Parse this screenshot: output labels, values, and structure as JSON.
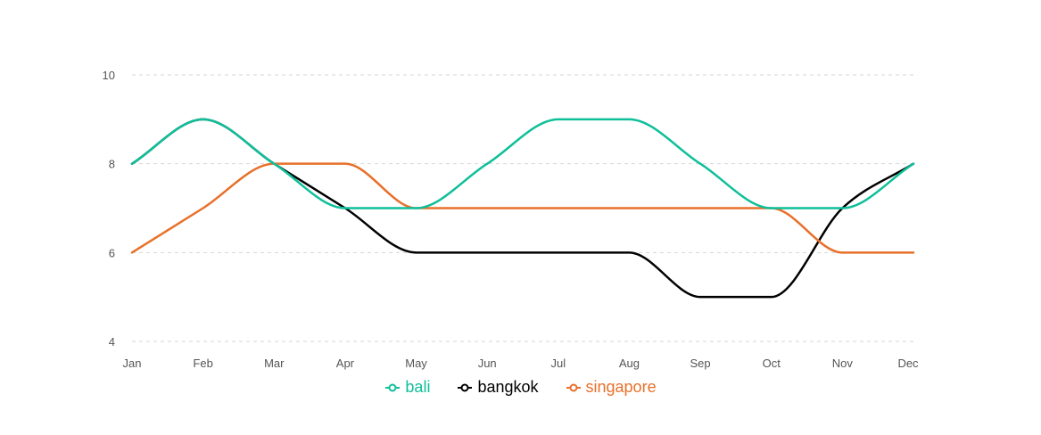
{
  "chart_data": {
    "type": "line",
    "categories": [
      "Jan",
      "Feb",
      "Mar",
      "Apr",
      "May",
      "Jun",
      "Jul",
      "Aug",
      "Sep",
      "Oct",
      "Nov",
      "Dec"
    ],
    "yticks": [
      "4",
      "6",
      "8",
      "10"
    ],
    "ylim": [
      4,
      10
    ],
    "grid": true,
    "legend_position": "bottom",
    "smooth": true,
    "series": [
      {
        "name": "bali",
        "color": "#0fbf9a",
        "values": [
          8,
          9,
          8,
          7,
          7,
          8,
          9,
          9,
          8,
          7,
          7,
          8
        ]
      },
      {
        "name": "bangkok",
        "color": "#000000",
        "values": [
          8,
          9,
          8,
          7,
          6,
          6,
          6,
          6,
          5,
          5,
          7,
          8
        ]
      },
      {
        "name": "singapore",
        "color": "#e8702a",
        "values": [
          6,
          7,
          8,
          8,
          7,
          7,
          7,
          7,
          7,
          7,
          6,
          6
        ]
      }
    ]
  }
}
